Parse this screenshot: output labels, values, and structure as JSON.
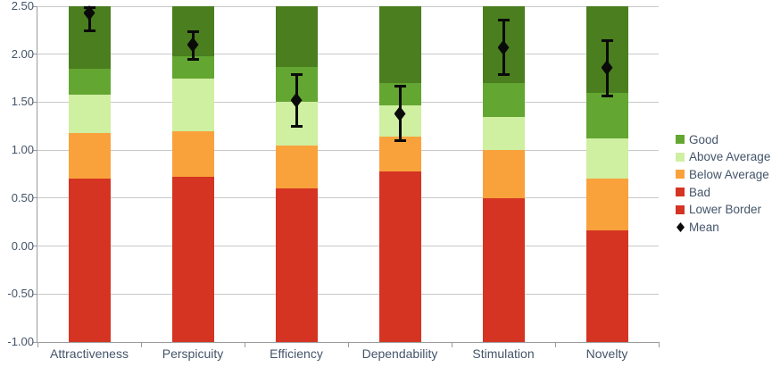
{
  "chart_data": {
    "type": "bar",
    "subtype": "stacked-benchmark-with-mean-error-bars",
    "title": "",
    "xlabel": "",
    "ylabel": "",
    "grid": true,
    "legend_position": "right",
    "ylim": [
      -1.0,
      2.5
    ],
    "yticks": [
      "2.50",
      "2.00",
      "1.50",
      "1.00",
      "0.50",
      "0.00",
      "-0.50",
      "-1.00"
    ],
    "ytick_values": [
      2.5,
      2.0,
      1.5,
      1.0,
      0.5,
      0.0,
      -0.5,
      -1.0
    ],
    "categories": [
      "Attractiveness",
      "Perspicuity",
      "Efficiency",
      "Dependability",
      "Stimulation",
      "Novelty"
    ],
    "bands": {
      "order": [
        "bad",
        "below_average",
        "above_average",
        "good",
        "excellent"
      ],
      "base": -1.0,
      "upper_bounds": {
        "Attractiveness": [
          0.7,
          1.18,
          1.58,
          1.85,
          2.5
        ],
        "Perspicuity": [
          0.72,
          1.2,
          1.75,
          1.98,
          2.5
        ],
        "Efficiency": [
          0.6,
          1.05,
          1.5,
          1.87,
          2.5
        ],
        "Dependability": [
          0.78,
          1.14,
          1.47,
          1.7,
          2.5
        ],
        "Stimulation": [
          0.5,
          1.0,
          1.35,
          1.7,
          2.5
        ],
        "Novelty": [
          0.16,
          0.7,
          1.12,
          1.6,
          2.5
        ]
      }
    },
    "mean_series": {
      "name": "Mean",
      "values": [
        2.43,
        2.1,
        1.52,
        1.38,
        2.07,
        1.86
      ],
      "ci_low": [
        2.24,
        1.94,
        1.24,
        1.09,
        1.78,
        1.56
      ],
      "ci_high": [
        2.49,
        2.24,
        1.79,
        1.67,
        2.36,
        2.15
      ]
    },
    "legend": [
      {
        "label": "Good",
        "swatch": "good",
        "marker": "square"
      },
      {
        "label": "Above Average",
        "swatch": "above_average",
        "marker": "square"
      },
      {
        "label": "Below Average",
        "swatch": "below_average",
        "marker": "square"
      },
      {
        "label": "Bad",
        "swatch": "bad",
        "marker": "square"
      },
      {
        "label": "Lower Border",
        "swatch": "lower_border",
        "marker": "square"
      },
      {
        "label": "Mean",
        "swatch": "mean",
        "marker": "diamond"
      }
    ],
    "colors": {
      "excellent": "#4a7e1e",
      "good": "#63a631",
      "above_average": "#cfefa1",
      "below_average": "#f9a23c",
      "bad": "#d53423",
      "lower_border": "#d53423",
      "mean": "#0a0a0a",
      "gridline": "#c9c9c9",
      "axis": "#9b9b9b",
      "text": "#44546a"
    }
  }
}
